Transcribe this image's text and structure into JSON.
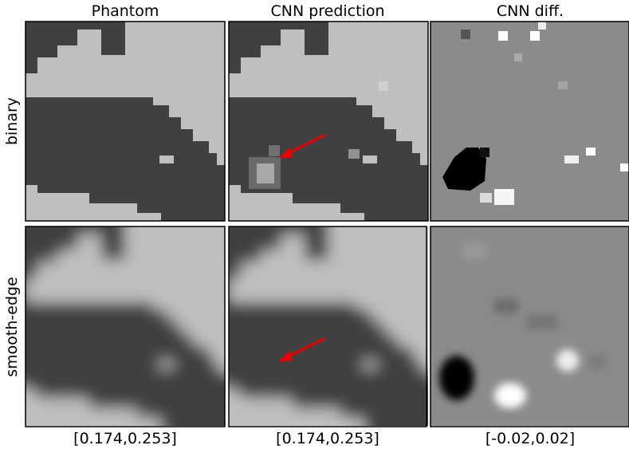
{
  "columns": [
    "Phantom",
    "CNN prediction",
    "CNN diff."
  ],
  "rows": [
    "binary",
    "smooth-edge"
  ],
  "ranges": [
    "[0.174,0.253]",
    "[0.174,0.253]",
    "[-0.02,0.02]"
  ]
}
